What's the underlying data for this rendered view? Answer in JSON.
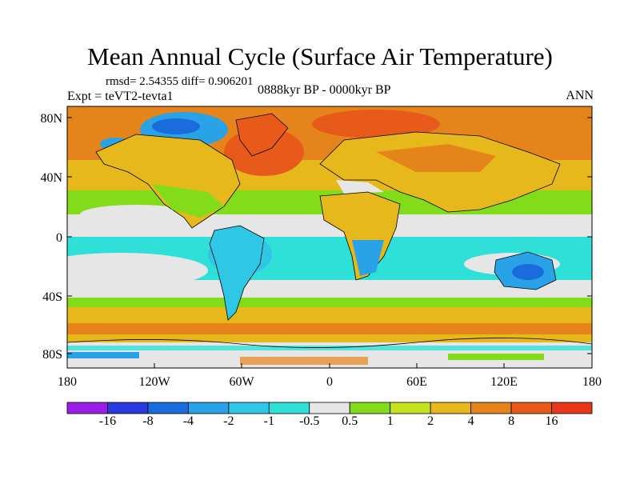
{
  "title": "Mean Annual Cycle (Surface Air Temperature)",
  "stats": "rmsd= 2.54355 diff= 0.906201",
  "experiment": "Expt = teVT2-tevta1",
  "period": "0888kyr BP - 0000kyr BP",
  "season": "ANN",
  "lat_ticks": [
    "80N",
    "40N",
    "0",
    "40S",
    "80S"
  ],
  "lon_ticks": [
    "180",
    "120W",
    "60W",
    "0",
    "60E",
    "120E",
    "180"
  ],
  "colorbar": {
    "labels": [
      "-16",
      "-8",
      "-4",
      "-2",
      "-1",
      "-0.5",
      "0.5",
      "1",
      "2",
      "4",
      "8",
      "16"
    ],
    "colors": [
      "#9a1ee6",
      "#2a3adc",
      "#1a6cdc",
      "#2aa2e8",
      "#30c6e6",
      "#2ee0d8",
      "#e6e6e6",
      "#82dc1a",
      "#c6e21e",
      "#e6b81c",
      "#e6841c",
      "#e85a1a",
      "#e6381a"
    ]
  }
}
